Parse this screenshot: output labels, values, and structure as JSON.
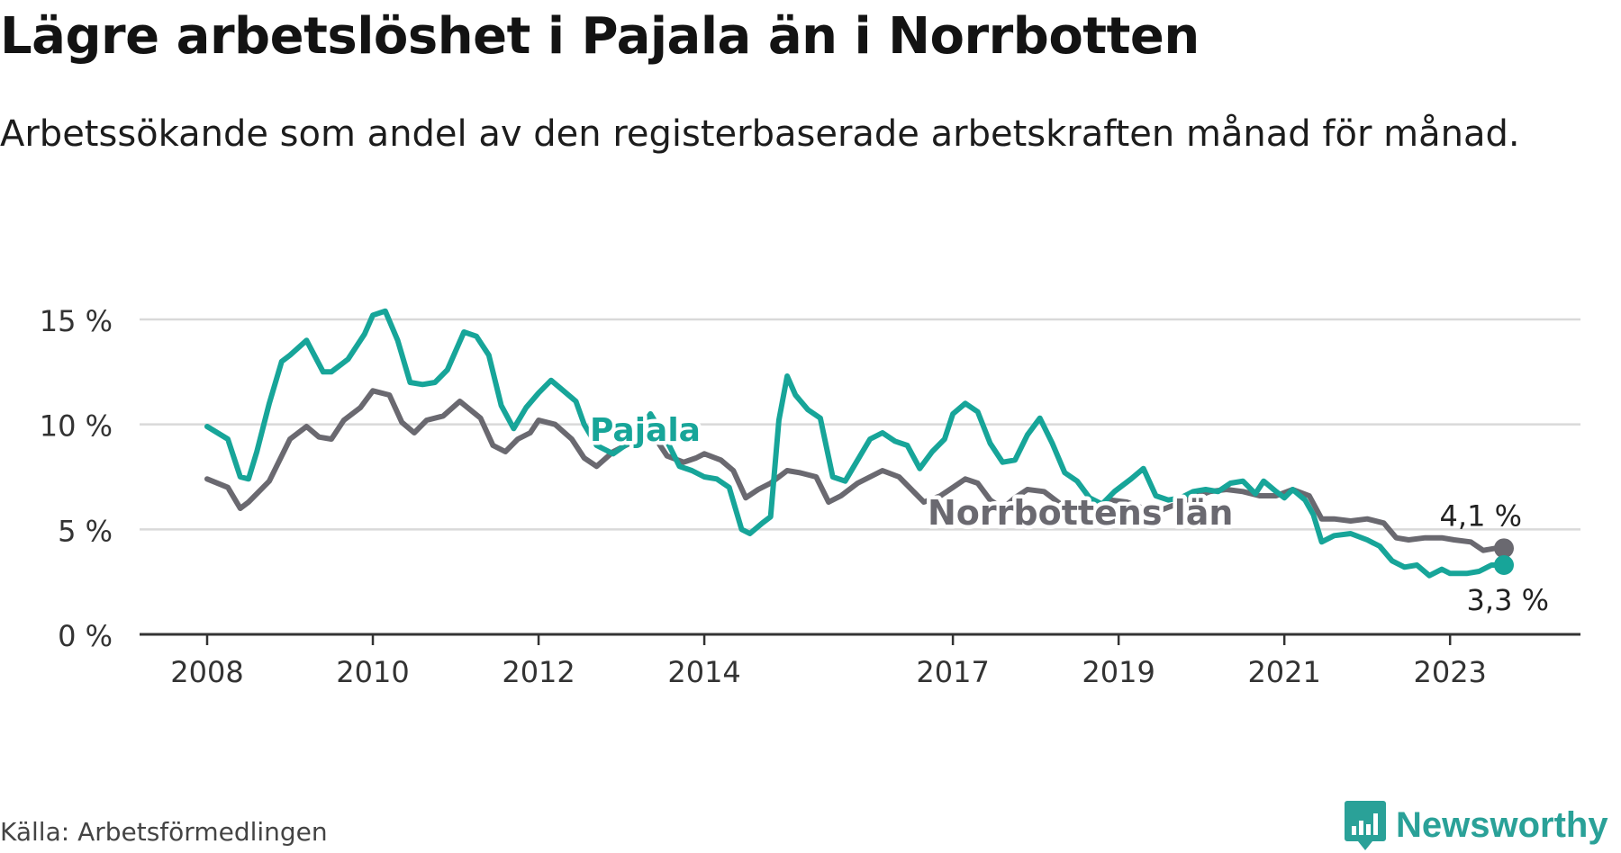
{
  "title": "Lägre arbetslöshet i Pajala än i Norrbotten",
  "subtitle": "Arbetssökande som andel av den registerbaserade arbetskraften månad för månad.",
  "source": "Källa: Arbetsförmedlingen",
  "logo": {
    "name": "Newsworthy",
    "icon": "newsworthy-chart-icon"
  },
  "colors": {
    "pajala": "#17a599",
    "norrbotten": "#6a6970",
    "grid": "#d9d9d9",
    "axis": "#333333"
  },
  "chart_data": {
    "type": "line",
    "title": "Lägre arbetslöshet i Pajala än i Norrbotten",
    "xlabel": "",
    "ylabel": "",
    "xlim": [
      2007.83,
      2023.75
    ],
    "ylim": [
      0,
      15
    ],
    "yticks": [
      0,
      5,
      10,
      15
    ],
    "ytick_labels": [
      "0 %",
      "5 %",
      "10 %",
      "15 %"
    ],
    "xticks": [
      2008,
      2010,
      2012,
      2014,
      2017,
      2019,
      2021,
      2023
    ],
    "xtick_labels": [
      "2008",
      "2010",
      "2012",
      "2014",
      "2017",
      "2019",
      "2021",
      "2023"
    ],
    "series": [
      {
        "name": "Pajala",
        "label": "Pajala",
        "end_label": "3,3 %",
        "end_value": 3.3,
        "points": [
          [
            2008.0,
            9.9
          ],
          [
            2008.25,
            9.3
          ],
          [
            2008.4,
            7.5
          ],
          [
            2008.5,
            7.4
          ],
          [
            2008.6,
            8.7
          ],
          [
            2008.75,
            11.0
          ],
          [
            2008.9,
            13.0
          ],
          [
            2009.0,
            13.3
          ],
          [
            2009.2,
            14.0
          ],
          [
            2009.4,
            12.5
          ],
          [
            2009.5,
            12.5
          ],
          [
            2009.7,
            13.1
          ],
          [
            2009.9,
            14.3
          ],
          [
            2010.0,
            15.2
          ],
          [
            2010.15,
            15.4
          ],
          [
            2010.3,
            14.0
          ],
          [
            2010.45,
            12.0
          ],
          [
            2010.6,
            11.9
          ],
          [
            2010.75,
            12.0
          ],
          [
            2010.9,
            12.6
          ],
          [
            2011.1,
            14.4
          ],
          [
            2011.25,
            14.2
          ],
          [
            2011.4,
            13.3
          ],
          [
            2011.55,
            10.9
          ],
          [
            2011.7,
            9.8
          ],
          [
            2011.85,
            10.8
          ],
          [
            2012.0,
            11.5
          ],
          [
            2012.15,
            12.1
          ],
          [
            2012.3,
            11.6
          ],
          [
            2012.45,
            11.1
          ],
          [
            2012.55,
            10.0
          ],
          [
            2012.7,
            9.0
          ],
          [
            2012.9,
            8.6
          ],
          [
            2013.15,
            9.3
          ],
          [
            2013.35,
            10.5
          ],
          [
            2013.55,
            9.2
          ],
          [
            2013.7,
            8.0
          ],
          [
            2013.85,
            7.8
          ],
          [
            2014.0,
            7.5
          ],
          [
            2014.15,
            7.4
          ],
          [
            2014.3,
            7.0
          ],
          [
            2014.45,
            5.0
          ],
          [
            2014.55,
            4.8
          ],
          [
            2014.7,
            5.3
          ],
          [
            2014.8,
            5.6
          ],
          [
            2014.9,
            10.2
          ],
          [
            2015.0,
            12.3
          ],
          [
            2015.1,
            11.4
          ],
          [
            2015.25,
            10.7
          ],
          [
            2015.4,
            10.3
          ],
          [
            2015.55,
            7.5
          ],
          [
            2015.7,
            7.3
          ],
          [
            2015.85,
            8.3
          ],
          [
            2016.0,
            9.3
          ],
          [
            2016.15,
            9.6
          ],
          [
            2016.3,
            9.2
          ],
          [
            2016.45,
            9.0
          ],
          [
            2016.6,
            7.9
          ],
          [
            2016.75,
            8.7
          ],
          [
            2016.9,
            9.3
          ],
          [
            2017.0,
            10.5
          ],
          [
            2017.15,
            11.0
          ],
          [
            2017.3,
            10.6
          ],
          [
            2017.45,
            9.1
          ],
          [
            2017.6,
            8.2
          ],
          [
            2017.75,
            8.3
          ],
          [
            2017.9,
            9.5
          ],
          [
            2018.05,
            10.3
          ],
          [
            2018.2,
            9.1
          ],
          [
            2018.35,
            7.7
          ],
          [
            2018.5,
            7.3
          ],
          [
            2018.65,
            6.5
          ],
          [
            2018.8,
            6.2
          ],
          [
            2018.95,
            6.8
          ],
          [
            2019.15,
            7.4
          ],
          [
            2019.3,
            7.9
          ],
          [
            2019.45,
            6.6
          ],
          [
            2019.6,
            6.4
          ],
          [
            2019.75,
            6.5
          ],
          [
            2019.9,
            6.8
          ],
          [
            2020.05,
            6.9
          ],
          [
            2020.2,
            6.8
          ],
          [
            2020.35,
            7.2
          ],
          [
            2020.5,
            7.3
          ],
          [
            2020.65,
            6.7
          ],
          [
            2020.75,
            7.3
          ],
          [
            2020.9,
            6.8
          ],
          [
            2021.0,
            6.5
          ],
          [
            2021.1,
            6.9
          ],
          [
            2021.25,
            6.4
          ],
          [
            2021.35,
            5.7
          ],
          [
            2021.45,
            4.4
          ],
          [
            2021.6,
            4.7
          ],
          [
            2021.8,
            4.8
          ],
          [
            2022.0,
            4.5
          ],
          [
            2022.15,
            4.2
          ],
          [
            2022.3,
            3.5
          ],
          [
            2022.45,
            3.2
          ],
          [
            2022.6,
            3.3
          ],
          [
            2022.75,
            2.8
          ],
          [
            2022.9,
            3.1
          ],
          [
            2023.0,
            2.9
          ],
          [
            2023.2,
            2.9
          ],
          [
            2023.35,
            3.0
          ],
          [
            2023.5,
            3.3
          ],
          [
            2023.6,
            3.3
          ],
          [
            2023.65,
            3.3
          ]
        ]
      },
      {
        "name": "Norrbottens län",
        "label": "Norrbottens län",
        "end_label": "4,1 %",
        "end_value": 4.1,
        "points": [
          [
            2008.0,
            7.4
          ],
          [
            2008.25,
            7.0
          ],
          [
            2008.4,
            6.0
          ],
          [
            2008.5,
            6.3
          ],
          [
            2008.75,
            7.3
          ],
          [
            2009.0,
            9.3
          ],
          [
            2009.2,
            9.9
          ],
          [
            2009.35,
            9.4
          ],
          [
            2009.5,
            9.3
          ],
          [
            2009.65,
            10.2
          ],
          [
            2009.85,
            10.8
          ],
          [
            2010.0,
            11.6
          ],
          [
            2010.2,
            11.4
          ],
          [
            2010.35,
            10.1
          ],
          [
            2010.5,
            9.6
          ],
          [
            2010.65,
            10.2
          ],
          [
            2010.85,
            10.4
          ],
          [
            2011.05,
            11.1
          ],
          [
            2011.3,
            10.3
          ],
          [
            2011.45,
            9.0
          ],
          [
            2011.6,
            8.7
          ],
          [
            2011.75,
            9.3
          ],
          [
            2011.9,
            9.6
          ],
          [
            2012.0,
            10.2
          ],
          [
            2012.2,
            10.0
          ],
          [
            2012.4,
            9.3
          ],
          [
            2012.55,
            8.4
          ],
          [
            2012.7,
            8.0
          ],
          [
            2012.9,
            8.7
          ],
          [
            2013.1,
            9.1
          ],
          [
            2013.35,
            9.7
          ],
          [
            2013.55,
            8.5
          ],
          [
            2013.75,
            8.2
          ],
          [
            2013.9,
            8.4
          ],
          [
            2014.0,
            8.6
          ],
          [
            2014.2,
            8.3
          ],
          [
            2014.35,
            7.8
          ],
          [
            2014.5,
            6.5
          ],
          [
            2014.65,
            6.9
          ],
          [
            2014.8,
            7.2
          ],
          [
            2015.0,
            7.8
          ],
          [
            2015.15,
            7.7
          ],
          [
            2015.35,
            7.5
          ],
          [
            2015.5,
            6.3
          ],
          [
            2015.65,
            6.6
          ],
          [
            2015.85,
            7.2
          ],
          [
            2016.0,
            7.5
          ],
          [
            2016.15,
            7.8
          ],
          [
            2016.35,
            7.5
          ],
          [
            2016.5,
            6.9
          ],
          [
            2016.65,
            6.3
          ],
          [
            2016.85,
            6.6
          ],
          [
            2017.0,
            7.0
          ],
          [
            2017.15,
            7.4
          ],
          [
            2017.3,
            7.2
          ],
          [
            2017.45,
            6.4
          ],
          [
            2017.6,
            6.0
          ],
          [
            2017.75,
            6.5
          ],
          [
            2017.9,
            6.9
          ],
          [
            2018.1,
            6.8
          ],
          [
            2018.3,
            6.2
          ],
          [
            2018.5,
            6.0
          ],
          [
            2018.7,
            5.9
          ],
          [
            2018.9,
            6.4
          ],
          [
            2019.1,
            6.3
          ],
          [
            2019.3,
            6.0
          ],
          [
            2019.5,
            5.9
          ],
          [
            2019.7,
            6.2
          ],
          [
            2019.9,
            6.5
          ],
          [
            2020.1,
            6.8
          ],
          [
            2020.3,
            6.9
          ],
          [
            2020.5,
            6.8
          ],
          [
            2020.7,
            6.6
          ],
          [
            2020.9,
            6.6
          ],
          [
            2021.1,
            6.9
          ],
          [
            2021.3,
            6.6
          ],
          [
            2021.45,
            5.5
          ],
          [
            2021.6,
            5.5
          ],
          [
            2021.8,
            5.4
          ],
          [
            2022.0,
            5.5
          ],
          [
            2022.2,
            5.3
          ],
          [
            2022.35,
            4.6
          ],
          [
            2022.5,
            4.5
          ],
          [
            2022.7,
            4.6
          ],
          [
            2022.9,
            4.6
          ],
          [
            2023.05,
            4.5
          ],
          [
            2023.25,
            4.4
          ],
          [
            2023.4,
            4.0
          ],
          [
            2023.55,
            4.1
          ],
          [
            2023.65,
            4.1
          ]
        ]
      }
    ],
    "series_label_positions": {
      "Pajala": "above line near 2013",
      "Norrbottens län": "below line near 2018"
    }
  }
}
